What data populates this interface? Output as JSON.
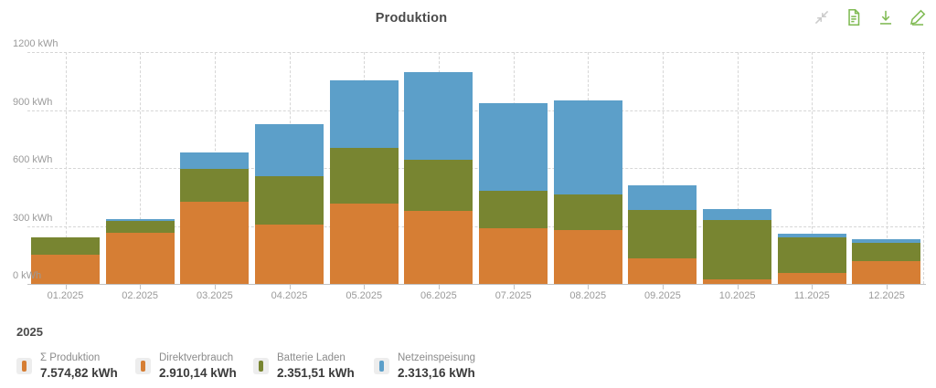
{
  "header": {
    "title": "Produktion"
  },
  "toolbar": {
    "icons": [
      {
        "name": "collapse-icon"
      },
      {
        "name": "report-icon"
      },
      {
        "name": "download-icon"
      },
      {
        "name": "edit-icon"
      }
    ]
  },
  "chart_data": {
    "type": "bar",
    "stacked": true,
    "title": "Produktion",
    "categories": [
      "01.2025",
      "02.2025",
      "03.2025",
      "04.2025",
      "05.2025",
      "06.2025",
      "07.2025",
      "08.2025",
      "09.2025",
      "10.2025",
      "11.2025",
      "12.2025"
    ],
    "series": [
      {
        "name": "Direktverbrauch",
        "color": "#d67e34",
        "values": [
          150,
          265,
          425,
          305,
          415,
          378,
          290,
          280,
          130,
          25,
          57,
          117
        ]
      },
      {
        "name": "Batterie Laden",
        "color": "#788531",
        "values": [
          90,
          62,
          172,
          252,
          290,
          264,
          190,
          181,
          253,
          306,
          184,
          96
        ]
      },
      {
        "name": "Netzeinspeisung",
        "color": "#5c9fc9",
        "values": [
          0,
          8,
          83,
          268,
          350,
          455,
          457,
          487,
          128,
          55,
          19,
          20
        ]
      }
    ],
    "xlabel": "",
    "ylabel": "kWh",
    "ylim": [
      0,
      1200
    ],
    "yticks": [
      0,
      300,
      600,
      900,
      1200
    ],
    "ytick_labels": [
      "0 kWh",
      "300 kWh",
      "600 kWh",
      "900 kWh",
      "1200 kWh"
    ],
    "grid": true,
    "legend_position": "bottom"
  },
  "legend": {
    "year": "2025",
    "items": [
      {
        "label": "Σ Produktion",
        "value": "7.574,82 kWh",
        "color": "#d67e34"
      },
      {
        "label": "Direktverbrauch",
        "value": "2.910,14 kWh",
        "color": "#d67e34"
      },
      {
        "label": "Batterie Laden",
        "value": "2.351,51 kWh",
        "color": "#788531"
      },
      {
        "label": "Netzeinspeisung",
        "value": "2.313,16 kWh",
        "color": "#5c9fc9"
      }
    ]
  }
}
